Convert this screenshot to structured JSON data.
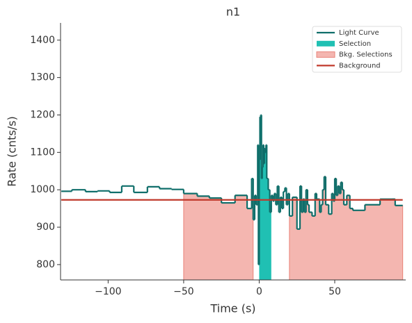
{
  "chart_data": {
    "type": "step",
    "title": "n1",
    "x_label": "Time (s)",
    "y_label": "Rate (cnts/s)",
    "xlim": [
      -131.5,
      97
    ],
    "ylim": [
      759,
      1446
    ],
    "xticks": [
      {
        "value": -100,
        "label": "−100"
      },
      {
        "value": -50,
        "label": "−50"
      },
      0,
      50
    ],
    "yticks": [
      800,
      900,
      1000,
      1100,
      1200,
      1300,
      1400
    ],
    "legend": "upper right",
    "light_curve": {
      "name": "Light Curve",
      "color": "#0f6e6a",
      "x": [
        -131,
        -124,
        -115,
        -107,
        -99,
        -91,
        -83,
        -74,
        -66,
        -58,
        -50,
        -41,
        -33,
        -25,
        -16,
        -8,
        -5,
        -4,
        -3,
        -2,
        -1,
        -0.5,
        0,
        0.5,
        1,
        1.5,
        2,
        2.5,
        3,
        3.5,
        4,
        4.5,
        5,
        6,
        7,
        8,
        9,
        10,
        11,
        12,
        13,
        14,
        15,
        16,
        17,
        18,
        19,
        20,
        22,
        25,
        27,
        28,
        29,
        30,
        31,
        32,
        33,
        35,
        37,
        38,
        40,
        41,
        42,
        43,
        44,
        46,
        48,
        49,
        50,
        51,
        52,
        53,
        54,
        55,
        56,
        58,
        60,
        62,
        70,
        80,
        88,
        90,
        95
      ],
      "values": [
        996,
        1000,
        995,
        997,
        993,
        1010,
        993,
        1008,
        1003,
        1001,
        990,
        983,
        978,
        965,
        985,
        950,
        1030,
        920,
        985,
        960,
        1120,
        800,
        1080,
        1195,
        1200,
        1030,
        1060,
        1120,
        1070,
        1110,
        1100,
        1120,
        1030,
        1000,
        940,
        985,
        970,
        990,
        960,
        1010,
        940,
        980,
        950,
        995,
        1005,
        960,
        990,
        930,
        980,
        895,
        1010,
        940,
        975,
        940,
        1000,
        960,
        940,
        930,
        990,
        975,
        940,
        960,
        1000,
        1035,
        960,
        935,
        990,
        970,
        1030,
        985,
        1010,
        990,
        1020,
        1000,
        960,
        985,
        950,
        945,
        960,
        975,
        975,
        958,
        958
      ]
    },
    "selection": {
      "name": "Selection",
      "color": "#20c0b3",
      "ranges": [
        [
          0,
          8
        ]
      ]
    },
    "bkg_selections": {
      "name": "Bkg. Selections",
      "color": "#f4b6b0",
      "ranges": [
        [
          -50,
          -4
        ],
        [
          20,
          95
        ]
      ]
    },
    "background": {
      "name": "Background",
      "color": "#c0392b",
      "x": [
        -131,
        95
      ],
      "value": 973
    }
  }
}
